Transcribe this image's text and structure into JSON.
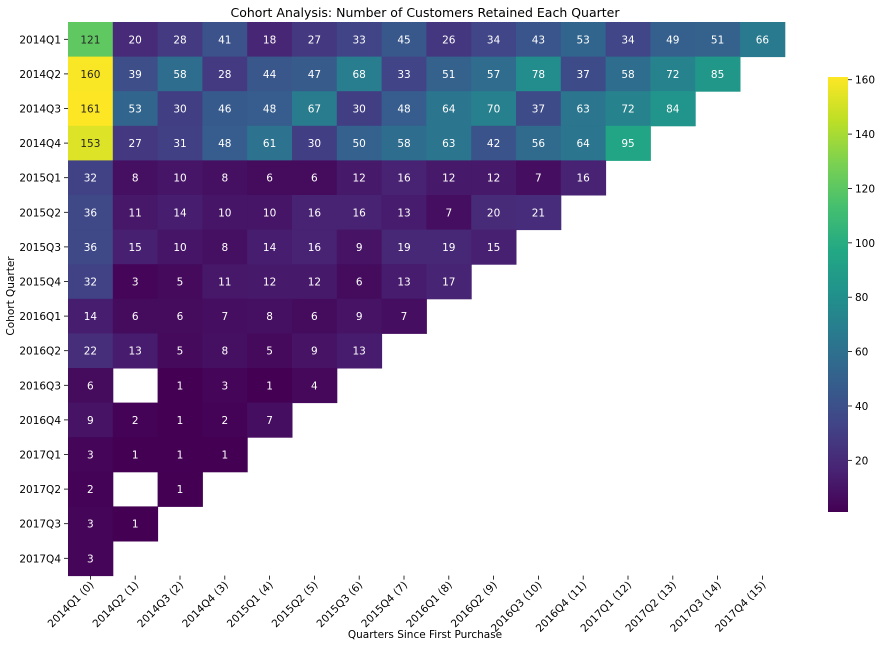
{
  "chart_data": {
    "type": "heatmap",
    "title": "Cohort Analysis: Number of Customers Retained Each Quarter",
    "xlabel": "Quarters Since First Purchase",
    "ylabel": "Cohort Quarter",
    "colormap": "viridis",
    "color_range": [
      1,
      161
    ],
    "colorbar_ticks": [
      20,
      40,
      60,
      80,
      100,
      120,
      140,
      160
    ],
    "rows": [
      "2014Q1",
      "2014Q2",
      "2014Q3",
      "2014Q4",
      "2015Q1",
      "2015Q2",
      "2015Q3",
      "2015Q4",
      "2016Q1",
      "2016Q2",
      "2016Q3",
      "2016Q4",
      "2017Q1",
      "2017Q2",
      "2017Q3",
      "2017Q4"
    ],
    "columns": [
      "2014Q1 (0)",
      "2014Q2 (1)",
      "2014Q3 (2)",
      "2014Q4 (3)",
      "2015Q1 (4)",
      "2015Q2 (5)",
      "2015Q3 (6)",
      "2015Q4 (7)",
      "2016Q1 (8)",
      "2016Q2 (9)",
      "2016Q3 (10)",
      "2016Q4 (11)",
      "2017Q1 (12)",
      "2017Q2 (13)",
      "2017Q3 (14)",
      "2017Q4 (15)"
    ],
    "values": [
      [
        121,
        20,
        28,
        41,
        18,
        27,
        33,
        45,
        26,
        34,
        43,
        53,
        34,
        49,
        51,
        66
      ],
      [
        160,
        39,
        58,
        28,
        44,
        47,
        68,
        33,
        51,
        57,
        78,
        37,
        58,
        72,
        85,
        null
      ],
      [
        161,
        53,
        30,
        46,
        48,
        67,
        30,
        48,
        64,
        70,
        37,
        63,
        72,
        84,
        null,
        null
      ],
      [
        153,
        27,
        31,
        48,
        61,
        30,
        50,
        58,
        63,
        42,
        56,
        64,
        95,
        null,
        null,
        null
      ],
      [
        32,
        8,
        10,
        8,
        6,
        6,
        12,
        16,
        12,
        12,
        7,
        16,
        null,
        null,
        null,
        null
      ],
      [
        36,
        11,
        14,
        10,
        10,
        16,
        16,
        13,
        7,
        20,
        21,
        null,
        null,
        null,
        null,
        null
      ],
      [
        36,
        15,
        10,
        8,
        14,
        16,
        9,
        19,
        19,
        15,
        null,
        null,
        null,
        null,
        null,
        null
      ],
      [
        32,
        3,
        5,
        11,
        12,
        12,
        6,
        13,
        17,
        null,
        null,
        null,
        null,
        null,
        null,
        null
      ],
      [
        14,
        6,
        6,
        7,
        8,
        6,
        9,
        7,
        null,
        null,
        null,
        null,
        null,
        null,
        null,
        null
      ],
      [
        22,
        13,
        5,
        8,
        5,
        9,
        13,
        null,
        null,
        null,
        null,
        null,
        null,
        null,
        null,
        null
      ],
      [
        6,
        null,
        1,
        3,
        1,
        4,
        null,
        null,
        null,
        null,
        null,
        null,
        null,
        null,
        null,
        null
      ],
      [
        9,
        2,
        1,
        2,
        7,
        null,
        null,
        null,
        null,
        null,
        null,
        null,
        null,
        null,
        null,
        null
      ],
      [
        3,
        1,
        1,
        1,
        null,
        null,
        null,
        null,
        null,
        null,
        null,
        null,
        null,
        null,
        null,
        null
      ],
      [
        2,
        null,
        1,
        null,
        null,
        null,
        null,
        null,
        null,
        null,
        null,
        null,
        null,
        null,
        null,
        null
      ],
      [
        3,
        1,
        null,
        null,
        null,
        null,
        null,
        null,
        null,
        null,
        null,
        null,
        null,
        null,
        null,
        null
      ],
      [
        3,
        null,
        null,
        null,
        null,
        null,
        null,
        null,
        null,
        null,
        null,
        null,
        null,
        null,
        null,
        null
      ]
    ]
  }
}
